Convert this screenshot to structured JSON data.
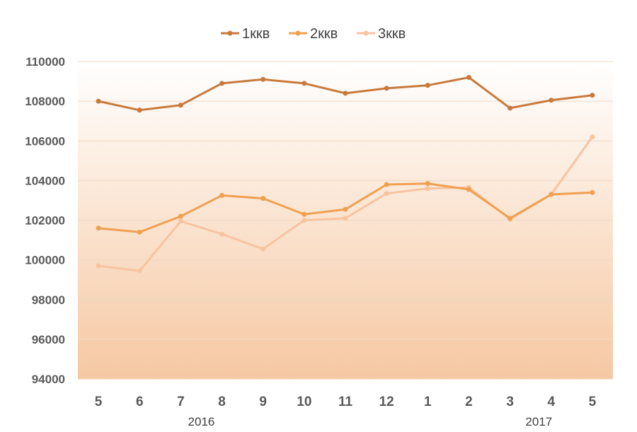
{
  "chart_data": {
    "type": "line",
    "categories": [
      "5",
      "6",
      "7",
      "8",
      "9",
      "10",
      "11",
      "12",
      "1",
      "2",
      "3",
      "4",
      "5"
    ],
    "year_labels": [
      {
        "label": "2016",
        "category_index": 2.5
      },
      {
        "label": "2017",
        "category_index": 10.7
      }
    ],
    "series": [
      {
        "name": "1ккв",
        "color": "#c87a3c",
        "values": [
          108000,
          107550,
          107800,
          108900,
          109100,
          108900,
          108400,
          108650,
          108800,
          109200,
          107650,
          108050,
          108300
        ]
      },
      {
        "name": "2ккв",
        "color": "#f0a050",
        "values": [
          101600,
          101400,
          102200,
          103250,
          103100,
          102300,
          102550,
          103800,
          103850,
          103550,
          102100,
          103300,
          103400
        ]
      },
      {
        "name": "3ккв",
        "color": "#f7c4a0",
        "values": [
          99700,
          99450,
          101950,
          101300,
          100550,
          102000,
          102100,
          103350,
          103600,
          103650,
          102050,
          103300,
          106200
        ]
      }
    ],
    "y_ticks": [
      "94000",
      "96000",
      "98000",
      "100000",
      "102000",
      "104000",
      "106000",
      "108000",
      "110000"
    ],
    "ylim": [
      94000,
      110000
    ],
    "legend_position": "top-center",
    "grid": true,
    "background_gradient": [
      "#ffffff",
      "#f6c8a2"
    ]
  }
}
